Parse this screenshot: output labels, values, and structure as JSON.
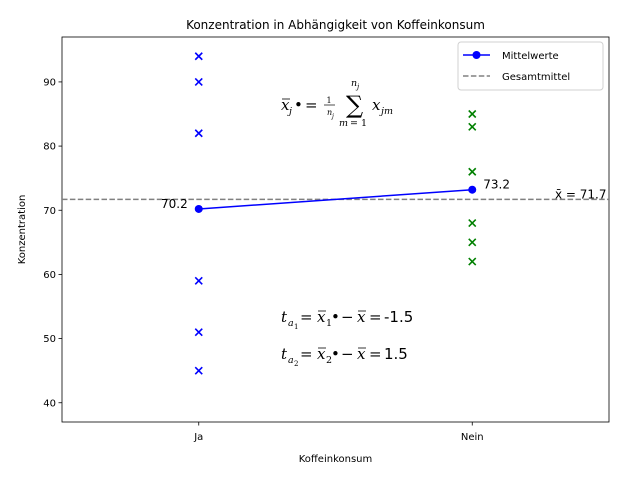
{
  "chart_data": {
    "type": "scatter",
    "title": "Konzentration in Abhängigkeit von Koffeinkonsum",
    "xlabel": "Koffeinkonsum",
    "ylabel": "Konzentration",
    "categories": [
      "Ja",
      "Nein"
    ],
    "ylim": [
      37,
      97
    ],
    "yticks": [
      40,
      50,
      60,
      70,
      80,
      90
    ],
    "grid": false,
    "legend_position": "top-right",
    "points": [
      {
        "group": "Ja",
        "values": [
          94,
          90,
          82,
          59,
          51,
          45
        ],
        "color": "#0000ff",
        "marker": "x"
      },
      {
        "group": "Nein",
        "values": [
          85,
          83,
          76,
          68,
          65,
          62
        ],
        "color": "#008000",
        "marker": "x"
      }
    ],
    "series": [
      {
        "name": "Mittelwerte",
        "values": [
          70.2,
          73.2
        ],
        "color": "#0000ff",
        "style": "line-with-circles"
      },
      {
        "name": "Gesamtmittel",
        "value": 71.7,
        "color": "#808080",
        "style": "dashed-horizontal"
      }
    ],
    "data_labels": {
      "mean_ja": "70.2",
      "mean_nein": "73.2",
      "grand_mean": "x̄ = 71.7"
    },
    "annotations": {
      "formula_effect_1_value": "-1.5",
      "formula_effect_2_value": "1.5"
    }
  }
}
